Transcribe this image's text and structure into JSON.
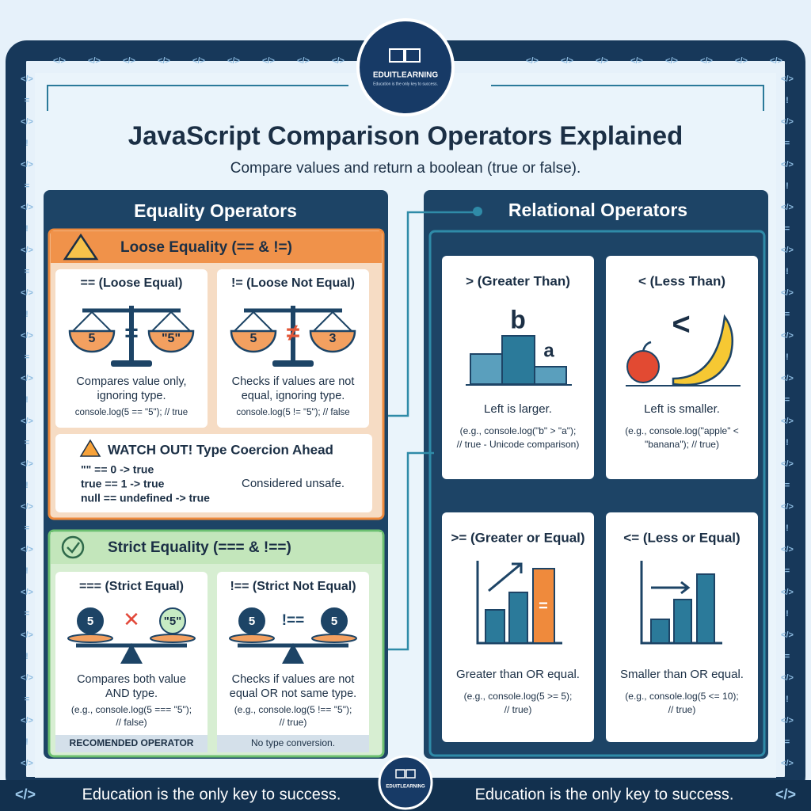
{
  "logo": {
    "name": "EDUITLEARNING",
    "tagline": "Education is the only key to success."
  },
  "decor": {
    "code": "</>",
    "bang": "!",
    "equals": "="
  },
  "header": {
    "title": "JavaScript Comparison Operators Explained",
    "subtitle": "Compare values and return a boolean (true or false)."
  },
  "equality": {
    "title": "Equality Operators",
    "loose": {
      "title": "Loose Equality (== & !=)",
      "cards": [
        {
          "title": "== (Loose Equal)",
          "icon": {
            "left": "5",
            "symbol": "=",
            "right": "\"5\""
          },
          "description": [
            "Compares value only,",
            "ignoring type."
          ],
          "example": [
            "console.log(5 == \"5\"); // true"
          ]
        },
        {
          "title": "!= (Loose Not Equal)",
          "icon": {
            "left": "5",
            "symbol": "≠",
            "right": "3"
          },
          "description": [
            "Checks if values are not",
            "equal, ignoring type."
          ],
          "example": [
            "console.log(5 != \"5\"); // false"
          ]
        }
      ],
      "warning": {
        "title": "WATCH OUT! Type Coercion Ahead",
        "lines": [
          "\"\" == 0 -> true",
          "true == 1 -> true",
          "null == undefined -> true"
        ],
        "note": "Considered unsafe."
      }
    },
    "strict": {
      "title": "Strict Equality (=== & !==)",
      "cards": [
        {
          "title": "=== (Strict Equal)",
          "icon": {
            "left": "5",
            "symbol": "✕",
            "right": "\"5\""
          },
          "description": [
            "Compares both value",
            "AND type."
          ],
          "example": [
            "(e.g., console.log(5 === \"5\");",
            "// false)"
          ],
          "footer": "RECOMENDED OPERATOR"
        },
        {
          "title": "!== (Strict Not Equal)",
          "icon": {
            "left": "5",
            "symbol": "!==",
            "right": "5"
          },
          "description": [
            "Checks if values are not",
            "equal OR not same type."
          ],
          "example": [
            "(e.g., console.log(5 !== \"5\");",
            "// true)"
          ],
          "footer": "No type conversion."
        }
      ]
    }
  },
  "relational": {
    "title": "Relational Operators",
    "cards": [
      {
        "title": "> (Greater Than)",
        "icon": {
          "left": "b",
          "right": "a"
        },
        "description": [
          "Left is larger."
        ],
        "example": [
          "(e.g., console.log(\"b\" > \"a\");",
          "// true - Unicode comparison)"
        ]
      },
      {
        "title": "< (Less Than)",
        "icon": {
          "symbol": "<"
        },
        "description": [
          "Left is smaller."
        ],
        "example": [
          "(e.g., console.log(\"apple\" <",
          "\"banana\"); // true)"
        ]
      },
      {
        "title": ">= (Greater or Equal)",
        "icon": {
          "symbol": "="
        },
        "description": [
          "Greater than OR equal."
        ],
        "example": [
          "(e.g., console.log(5 >= 5);",
          "// true)"
        ]
      },
      {
        "title": "<= (Less or Equal)",
        "description": [
          "Smaller than OR equal."
        ],
        "example": [
          "(e.g., console.log(5 <= 10);",
          "// true)"
        ]
      }
    ]
  },
  "footer": {
    "left": "Education is the only key to success.",
    "right": "Education is the only key to success."
  }
}
